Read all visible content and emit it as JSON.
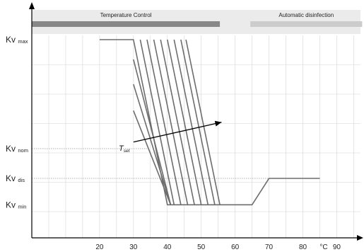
{
  "chart_data": {
    "type": "line",
    "title": "",
    "xlabel": "",
    "x_unit": "°C",
    "x_ticks": [
      20,
      30,
      40,
      50,
      60,
      70,
      80,
      90
    ],
    "xlim": [
      0,
      97
    ],
    "y_levels": [
      {
        "key": "max",
        "main": "Kv",
        "sub": "max",
        "value": 1.0
      },
      {
        "key": "nom",
        "main": "Kv",
        "sub": "nom",
        "value": 0.34
      },
      {
        "key": "dis",
        "main": "Kv",
        "sub": "dis",
        "value": 0.16
      },
      {
        "key": "min",
        "main": "Kv",
        "sub": "min",
        "value": 0.0
      }
    ],
    "ylim": [
      -0.2,
      1.18
    ],
    "grid": true,
    "bands": [
      {
        "label": "Temperature Control",
        "x": [
          0,
          55.5
        ],
        "color": "#888888"
      },
      {
        "label": "Automatic disinfection",
        "x": [
          64.5,
          97.5
        ],
        "color": "#cccccc"
      }
    ],
    "series": [
      {
        "points": [
          [
            20,
            1.0
          ],
          [
            30,
            1.0
          ],
          [
            40,
            0.0
          ],
          [
            65,
            0.0
          ],
          [
            70,
            0.16
          ],
          [
            85,
            0.16
          ]
        ]
      },
      {
        "points": [
          [
            32,
            1.0
          ],
          [
            42,
            0.0
          ]
        ]
      },
      {
        "points": [
          [
            34,
            1.0
          ],
          [
            44,
            0.0
          ]
        ]
      },
      {
        "points": [
          [
            36,
            1.0
          ],
          [
            46,
            0.0
          ]
        ]
      },
      {
        "points": [
          [
            38,
            1.0
          ],
          [
            48,
            0.0
          ]
        ]
      },
      {
        "points": [
          [
            40,
            1.0
          ],
          [
            50,
            0.0
          ]
        ]
      },
      {
        "points": [
          [
            42,
            1.0
          ],
          [
            52,
            0.0
          ]
        ]
      },
      {
        "points": [
          [
            44,
            1.0
          ],
          [
            54,
            0.0
          ]
        ]
      },
      {
        "points": [
          [
            45.5,
            1.0
          ],
          [
            55.5,
            0.0
          ]
        ]
      },
      {
        "points": [
          [
            30,
            0.88
          ],
          [
            41,
            0.0
          ]
        ]
      },
      {
        "points": [
          [
            30,
            0.73
          ],
          [
            41,
            0.0
          ]
        ]
      },
      {
        "points": [
          [
            30,
            0.57
          ],
          [
            41,
            0.0
          ]
        ]
      }
    ],
    "annotations": [
      {
        "main": "T",
        "sub": "set",
        "from": [
          30,
          0.38
        ],
        "to": [
          56,
          0.5
        ]
      }
    ]
  }
}
